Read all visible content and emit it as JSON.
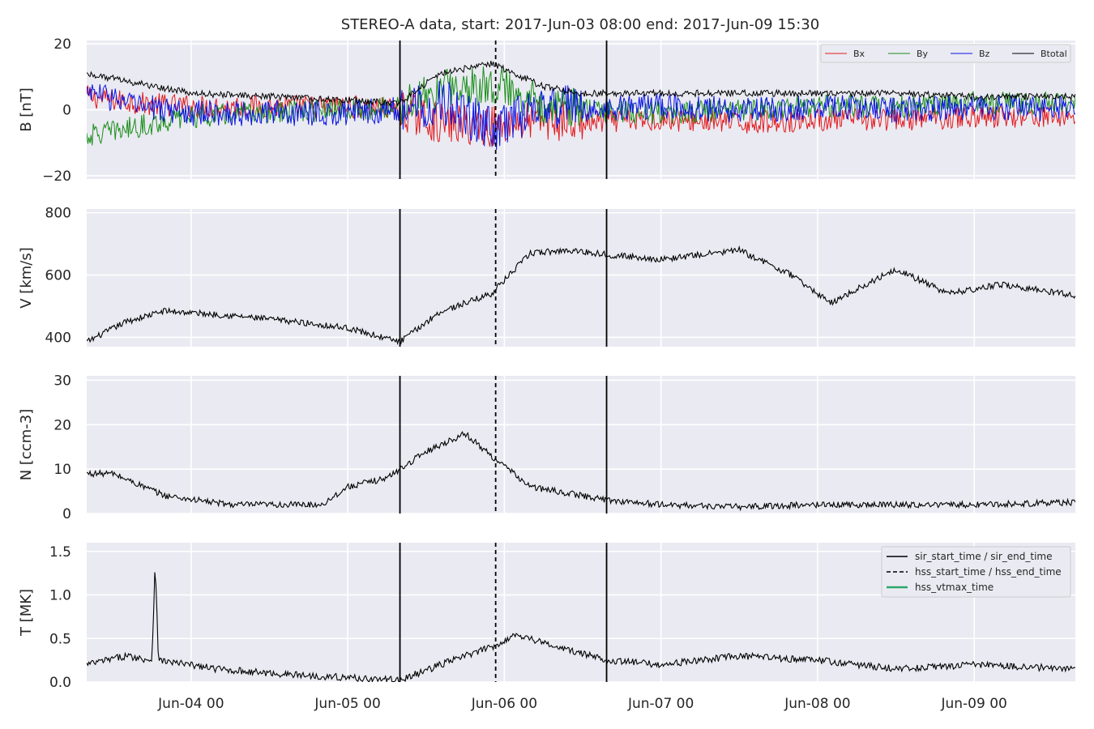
{
  "chart_data": {
    "type": "line",
    "title": "STEREO-A data, start: 2017-Jun-03 08:00  end: 2017-Jun-09 15:30",
    "time_range": [
      "2017-06-03 08:00",
      "2017-06-09 15:30"
    ],
    "x_tick_labels": [
      "Jun-04 00",
      "Jun-05 00",
      "Jun-06 00",
      "Jun-07 00",
      "Jun-08 00",
      "Jun-09 00"
    ],
    "x_tick_times": [
      "2017-06-04 00:00",
      "2017-06-05 00:00",
      "2017-06-06 00:00",
      "2017-06-07 00:00",
      "2017-06-08 00:00",
      "2017-06-09 00:00"
    ],
    "grid": true,
    "event_markers": [
      {
        "label": "sir_start_time / sir_end_time",
        "style": "solid",
        "times": [
          "2017-06-05 08:00",
          "2017-06-06 15:40"
        ]
      },
      {
        "label": "hss_start_time / hss_end_time",
        "style": "dashed",
        "times": [
          "2017-06-05 22:40"
        ]
      },
      {
        "label": "hss_vtmax_time",
        "style": "solid",
        "color": "#2ca86a",
        "times": []
      }
    ],
    "panels": [
      {
        "ylabel": "B [nT]",
        "ylim": [
          -21,
          21
        ],
        "yticks": [
          20,
          0,
          -20
        ],
        "ytick_labels": [
          "20",
          "0",
          "−20"
        ],
        "legend": "top-right",
        "series": [
          {
            "name": "Bx",
            "color": "#e31a1c",
            "x": [
              "2017-06-03 08:00",
              "2017-06-03 16:00",
              "2017-06-04 00:00",
              "2017-06-04 12:00",
              "2017-06-05 00:00",
              "2017-06-05 08:00",
              "2017-06-05 14:00",
              "2017-06-05 22:00",
              "2017-06-06 06:00",
              "2017-06-06 12:00",
              "2017-06-07 00:00",
              "2017-06-07 12:00",
              "2017-06-08 00:00",
              "2017-06-08 12:00",
              "2017-06-09 00:00",
              "2017-06-09 15:30"
            ],
            "values": [
              4,
              2,
              1,
              1,
              1,
              0,
              -4,
              -5,
              -3,
              -4,
              -3,
              -4,
              -3,
              -3,
              -2,
              -2
            ]
          },
          {
            "name": "By",
            "color": "#1a8f1a",
            "x": [
              "2017-06-03 08:00",
              "2017-06-03 16:00",
              "2017-06-04 00:00",
              "2017-06-04 12:00",
              "2017-06-05 00:00",
              "2017-06-05 08:00",
              "2017-06-05 14:00",
              "2017-06-05 22:00",
              "2017-06-06 06:00",
              "2017-06-06 12:00",
              "2017-06-07 00:00",
              "2017-06-07 12:00",
              "2017-06-08 00:00",
              "2017-06-08 12:00",
              "2017-06-09 00:00",
              "2017-06-09 15:30"
            ],
            "values": [
              -8,
              -5,
              -2,
              -1,
              0,
              1,
              6,
              8,
              2,
              0,
              -1,
              0,
              1,
              1,
              2,
              2
            ]
          },
          {
            "name": "Bz",
            "color": "#0a14e6",
            "x": [
              "2017-06-03 08:00",
              "2017-06-03 16:00",
              "2017-06-04 00:00",
              "2017-06-04 12:00",
              "2017-06-05 00:00",
              "2017-06-05 08:00",
              "2017-06-05 14:00",
              "2017-06-05 22:00",
              "2017-06-06 06:00",
              "2017-06-06 12:00",
              "2017-06-07 00:00",
              "2017-06-07 12:00",
              "2017-06-08 00:00",
              "2017-06-08 12:00",
              "2017-06-09 00:00",
              "2017-06-09 15:30"
            ],
            "values": [
              6,
              1,
              -1,
              -1,
              -1,
              0,
              3,
              -6,
              1,
              0,
              1,
              0,
              1,
              0,
              1,
              0
            ]
          },
          {
            "name": "Btotal",
            "color": "#000000",
            "x": [
              "2017-06-03 08:00",
              "2017-06-03 16:00",
              "2017-06-04 00:00",
              "2017-06-04 12:00",
              "2017-06-05 00:00",
              "2017-06-05 08:00",
              "2017-06-05 14:00",
              "2017-06-05 22:00",
              "2017-06-06 06:00",
              "2017-06-06 12:00",
              "2017-06-07 00:00",
              "2017-06-07 12:00",
              "2017-06-08 00:00",
              "2017-06-08 12:00",
              "2017-06-09 00:00",
              "2017-06-09 15:30"
            ],
            "values": [
              11,
              8,
              5,
              4,
              3,
              2,
              11,
              14,
              7,
              5,
              5,
              5,
              5,
              5,
              4,
              4
            ]
          }
        ]
      },
      {
        "ylabel": "V [km/s]",
        "ylim": [
          370,
          812
        ],
        "yticks": [
          800,
          600,
          400
        ],
        "ytick_labels": [
          "800",
          "600",
          "400"
        ],
        "series": [
          {
            "name": "",
            "color": "#000000",
            "x": [
              "2017-06-03 08:00",
              "2017-06-03 14:00",
              "2017-06-03 20:00",
              "2017-06-04 06:00",
              "2017-06-04 16:00",
              "2017-06-05 00:00",
              "2017-06-05 08:00",
              "2017-06-05 14:00",
              "2017-06-05 22:00",
              "2017-06-06 04:00",
              "2017-06-06 10:00",
              "2017-06-06 16:00",
              "2017-06-07 00:00",
              "2017-06-07 12:00",
              "2017-06-07 20:00",
              "2017-06-08 02:00",
              "2017-06-08 12:00",
              "2017-06-08 20:00",
              "2017-06-09 04:00",
              "2017-06-09 15:30"
            ],
            "values": [
              385,
              450,
              485,
              470,
              450,
              430,
              385,
              480,
              540,
              670,
              680,
              665,
              650,
              680,
              600,
              510,
              620,
              540,
              570,
              535
            ]
          }
        ]
      },
      {
        "ylabel": "N [ccm-3]",
        "ylim": [
          0,
          31
        ],
        "yticks": [
          30,
          20,
          10,
          0
        ],
        "ytick_labels": [
          "30",
          "20",
          "10",
          "0"
        ],
        "series": [
          {
            "name": "",
            "color": "#000000",
            "x": [
              "2017-06-03 08:00",
              "2017-06-03 12:00",
              "2017-06-03 20:00",
              "2017-06-04 06:00",
              "2017-06-04 20:00",
              "2017-06-05 00:00",
              "2017-06-05 06:00",
              "2017-06-05 12:00",
              "2017-06-05 18:00",
              "2017-06-05 22:00",
              "2017-06-06 04:00",
              "2017-06-06 12:00",
              "2017-06-06 16:00",
              "2017-06-07 00:00",
              "2017-06-07 12:00",
              "2017-06-08 00:00",
              "2017-06-09 00:00",
              "2017-06-09 15:30"
            ],
            "values": [
              9,
              9,
              4,
              2,
              2,
              6,
              8,
              14,
              18,
              13,
              6,
              4,
              3,
              2,
              1.5,
              2,
              2,
              2.5
            ]
          }
        ]
      },
      {
        "ylabel": "T [MK]",
        "ylim": [
          0,
          1.6
        ],
        "yticks": [
          1.5,
          1.0,
          0.5,
          0.0
        ],
        "ytick_labels": [
          "1.5",
          "1.0",
          "0.5",
          "0.0"
        ],
        "legend": "top-right",
        "series": [
          {
            "name": "",
            "color": "#000000",
            "x": [
              "2017-06-03 08:00",
              "2017-06-03 14:00",
              "2017-06-03 18:00",
              "2017-06-03 18:30",
              "2017-06-03 19:00",
              "2017-06-04 04:00",
              "2017-06-04 12:00",
              "2017-06-05 00:00",
              "2017-06-05 08:00",
              "2017-06-05 16:00",
              "2017-06-05 22:00",
              "2017-06-06 02:00",
              "2017-06-06 08:00",
              "2017-06-06 16:00",
              "2017-06-07 00:00",
              "2017-06-07 12:00",
              "2017-06-08 00:00",
              "2017-06-08 12:00",
              "2017-06-09 00:00",
              "2017-06-09 15:30"
            ],
            "values": [
              0.2,
              0.3,
              0.25,
              1.4,
              0.25,
              0.15,
              0.1,
              0.05,
              0.02,
              0.25,
              0.4,
              0.55,
              0.4,
              0.25,
              0.2,
              0.3,
              0.25,
              0.15,
              0.2,
              0.15
            ]
          }
        ]
      }
    ]
  }
}
